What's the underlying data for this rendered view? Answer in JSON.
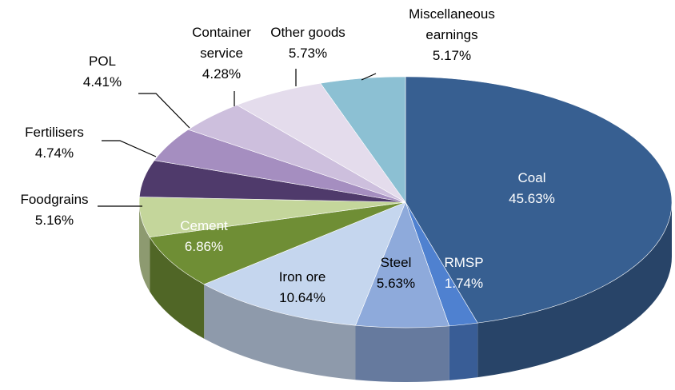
{
  "chart_data": {
    "type": "pie",
    "categories": [
      "Coal",
      "RMSP",
      "Steel",
      "Iron ore",
      "Cement",
      "Foodgrains",
      "Fertilisers",
      "POL",
      "Container service",
      "Other goods",
      "Miscellaneous earnings"
    ],
    "values": [
      45.63,
      1.74,
      5.63,
      10.64,
      6.86,
      5.16,
      4.74,
      4.41,
      4.28,
      5.73,
      5.17
    ],
    "value_labels": [
      "45.63%",
      "1.74%",
      "5.63%",
      "10.64%",
      "6.86%",
      "5.16%",
      "4.74%",
      "4.41%",
      "4.28%",
      "5.73%",
      "5.17%"
    ],
    "colors": [
      "#375f91",
      "#4f81d0",
      "#8eaadb",
      "#c5d6ee",
      "#6f8e35",
      "#c4d69b",
      "#4f3a6b",
      "#a58ec0",
      "#cdbfdd",
      "#e4dcec",
      "#8cc0d3"
    ]
  }
}
